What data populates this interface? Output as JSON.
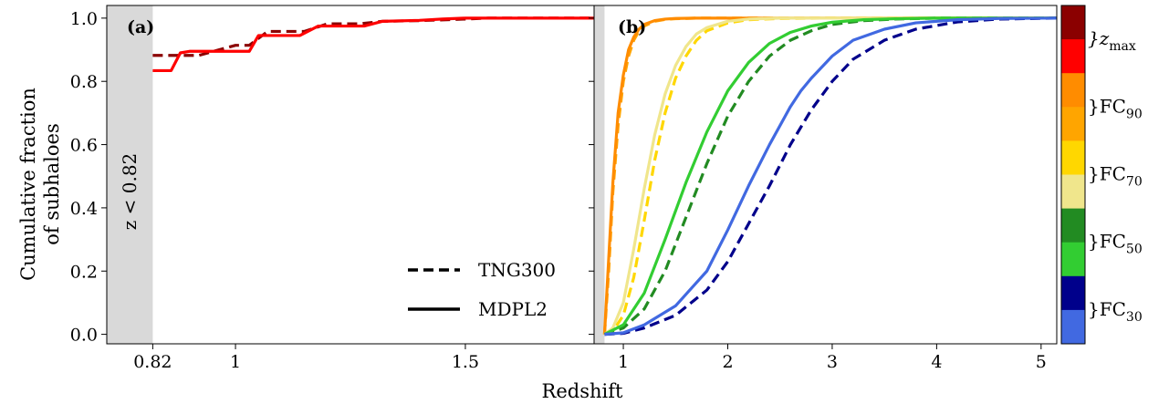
{
  "figure": {
    "ylabel_line1": "Cumulative fraction",
    "ylabel_line2": "of subhaloes",
    "xlabel": "Redshift",
    "panel_a_tag": "(a)",
    "panel_b_tag": "(b)",
    "shade_label": "z < 0.82",
    "legend": {
      "dashed_label": "TNG300",
      "solid_label": "MDPL2"
    },
    "colorbar": {
      "colors": [
        "#8b0000",
        "#ff0000",
        "#ff8c00",
        "#ffa500",
        "#ffd700",
        "#f0e68c",
        "#228b22",
        "#32cd32",
        "#00008b",
        "#4169e1"
      ],
      "labels": [
        {
          "base": "}z",
          "sub": "max"
        },
        {
          "base": "}FC",
          "sub": "90"
        },
        {
          "base": "}FC",
          "sub": "70"
        },
        {
          "base": "}FC",
          "sub": "50"
        },
        {
          "base": "}FC",
          "sub": "30"
        }
      ]
    }
  },
  "chart_data": [
    {
      "panel": "a",
      "type": "line",
      "xlabel": "Redshift",
      "ylabel": "Cumulative fraction of subhaloes",
      "xlim": [
        0.72,
        1.78
      ],
      "ylim": [
        -0.03,
        1.04
      ],
      "xticks": [
        0.82,
        1,
        1.5
      ],
      "xtick_labels": [
        "0.82",
        "1",
        "1.5"
      ],
      "yticks": [
        0.0,
        0.2,
        0.4,
        0.6,
        0.8,
        1.0
      ],
      "ytick_labels": [
        "0.0",
        "0.2",
        "0.4",
        "0.6",
        "0.8",
        "1.0"
      ],
      "shaded_region": [
        0.72,
        0.82
      ],
      "grid": false,
      "legend_position": "lower-right",
      "series": [
        {
          "name": "TNG300",
          "sim": "TNG300",
          "color": "#8b0000",
          "dashed": true,
          "x": [
            0.82,
            0.86,
            0.92,
            1.0,
            1.03,
            1.07,
            1.15,
            1.2,
            1.22,
            1.27,
            1.32,
            1.4,
            1.5,
            1.55,
            1.78
          ],
          "y": [
            0.882,
            0.882,
            0.882,
            0.914,
            0.914,
            0.958,
            0.958,
            0.982,
            0.982,
            0.982,
            0.99,
            0.992,
            0.997,
            1.0,
            1.0
          ]
        },
        {
          "name": "MDPL2",
          "sim": "MDPL2",
          "color": "#ff0000",
          "dashed": false,
          "x": [
            0.82,
            0.84,
            0.86,
            0.88,
            0.9,
            1.0,
            1.03,
            1.05,
            1.12,
            1.14,
            1.18,
            1.22,
            1.28,
            1.32,
            1.4,
            1.45,
            1.5,
            1.78
          ],
          "y": [
            0.834,
            0.834,
            0.834,
            0.89,
            0.895,
            0.895,
            0.895,
            0.945,
            0.945,
            0.945,
            0.975,
            0.975,
            0.975,
            0.99,
            0.993,
            0.997,
            1.0,
            1.0
          ]
        }
      ]
    },
    {
      "panel": "b",
      "type": "line",
      "xlabel": "Redshift",
      "xlim": [
        0.72,
        5.15
      ],
      "ylim": [
        -0.03,
        1.04
      ],
      "xticks": [
        1,
        2,
        3,
        4,
        5
      ],
      "xtick_labels": [
        "1",
        "2",
        "3",
        "4",
        "5"
      ],
      "shaded_region": [
        0.72,
        0.82
      ],
      "grid": false,
      "series": [
        {
          "sim": "TNG300",
          "group": "FC90",
          "color": "#ffa500",
          "dashed": true,
          "x": [
            0.82,
            0.86,
            0.9,
            0.95,
            1.0,
            1.05,
            1.1,
            1.15,
            1.2,
            1.3,
            1.4,
            1.5,
            1.7,
            2.0,
            3.0,
            5.15
          ],
          "y": [
            0.0,
            0.2,
            0.45,
            0.66,
            0.8,
            0.88,
            0.93,
            0.96,
            0.975,
            0.99,
            0.996,
            0.998,
            1.0,
            1.0,
            1.0,
            1.0
          ]
        },
        {
          "sim": "MDPL2",
          "group": "FC90",
          "color": "#ff8c00",
          "dashed": false,
          "x": [
            0.82,
            0.85,
            0.9,
            0.95,
            1.0,
            1.05,
            1.1,
            1.15,
            1.2,
            1.3,
            1.4,
            1.5,
            1.7,
            2.0,
            3.0,
            5.15
          ],
          "y": [
            0.0,
            0.18,
            0.48,
            0.7,
            0.82,
            0.9,
            0.94,
            0.965,
            0.98,
            0.992,
            0.997,
            0.999,
            1.0,
            1.0,
            1.0,
            1.0
          ]
        },
        {
          "sim": "TNG300",
          "group": "FC70",
          "color": "#ffd700",
          "dashed": true,
          "x": [
            0.82,
            0.9,
            1.0,
            1.1,
            1.2,
            1.3,
            1.4,
            1.5,
            1.6,
            1.7,
            1.8,
            2.0,
            2.2,
            2.5,
            3.0,
            5.15
          ],
          "y": [
            0.0,
            0.01,
            0.06,
            0.18,
            0.36,
            0.55,
            0.7,
            0.81,
            0.88,
            0.93,
            0.96,
            0.985,
            0.995,
            0.999,
            1.0,
            1.0
          ]
        },
        {
          "sim": "MDPL2",
          "group": "FC70",
          "color": "#f0e68c",
          "dashed": false,
          "x": [
            0.82,
            0.9,
            1.0,
            1.1,
            1.2,
            1.3,
            1.4,
            1.5,
            1.6,
            1.7,
            1.8,
            2.0,
            2.2,
            2.5,
            3.0,
            5.15
          ],
          "y": [
            0.0,
            0.02,
            0.1,
            0.27,
            0.46,
            0.63,
            0.76,
            0.85,
            0.91,
            0.95,
            0.97,
            0.99,
            0.997,
            1.0,
            1.0,
            1.0
          ]
        },
        {
          "sim": "TNG300",
          "group": "FC50",
          "color": "#228b22",
          "dashed": true,
          "x": [
            0.82,
            1.0,
            1.2,
            1.4,
            1.6,
            1.8,
            2.0,
            2.2,
            2.4,
            2.6,
            2.8,
            3.0,
            3.3,
            3.6,
            4.0,
            5.15
          ],
          "y": [
            0.0,
            0.02,
            0.08,
            0.2,
            0.37,
            0.54,
            0.69,
            0.8,
            0.88,
            0.93,
            0.96,
            0.98,
            0.992,
            0.997,
            1.0,
            1.0
          ]
        },
        {
          "sim": "MDPL2",
          "group": "FC50",
          "color": "#32cd32",
          "dashed": false,
          "x": [
            0.82,
            1.0,
            1.2,
            1.4,
            1.6,
            1.8,
            2.0,
            2.2,
            2.4,
            2.6,
            2.8,
            3.0,
            3.3,
            3.6,
            4.0,
            5.15
          ],
          "y": [
            0.0,
            0.03,
            0.13,
            0.3,
            0.48,
            0.64,
            0.77,
            0.86,
            0.92,
            0.955,
            0.975,
            0.987,
            0.995,
            0.998,
            1.0,
            1.0
          ]
        },
        {
          "sim": "TNG300",
          "group": "FC30",
          "color": "#00008b",
          "dashed": true,
          "x": [
            0.82,
            1.0,
            1.2,
            1.5,
            1.8,
            2.0,
            2.2,
            2.4,
            2.6,
            2.8,
            3.0,
            3.2,
            3.5,
            3.8,
            4.2,
            4.6,
            5.15
          ],
          "y": [
            0.0,
            0.003,
            0.02,
            0.06,
            0.14,
            0.23,
            0.35,
            0.47,
            0.6,
            0.71,
            0.8,
            0.87,
            0.93,
            0.965,
            0.988,
            0.997,
            1.0
          ]
        },
        {
          "sim": "MDPL2",
          "group": "FC30",
          "color": "#4169e1",
          "dashed": false,
          "x": [
            0.82,
            1.0,
            1.2,
            1.5,
            1.8,
            2.0,
            2.2,
            2.4,
            2.6,
            2.7,
            2.8,
            3.0,
            3.2,
            3.5,
            3.8,
            4.2,
            4.6,
            5.15
          ],
          "y": [
            0.0,
            0.005,
            0.03,
            0.09,
            0.2,
            0.33,
            0.47,
            0.6,
            0.72,
            0.77,
            0.81,
            0.88,
            0.93,
            0.965,
            0.985,
            0.995,
            0.999,
            1.0
          ]
        }
      ]
    }
  ]
}
